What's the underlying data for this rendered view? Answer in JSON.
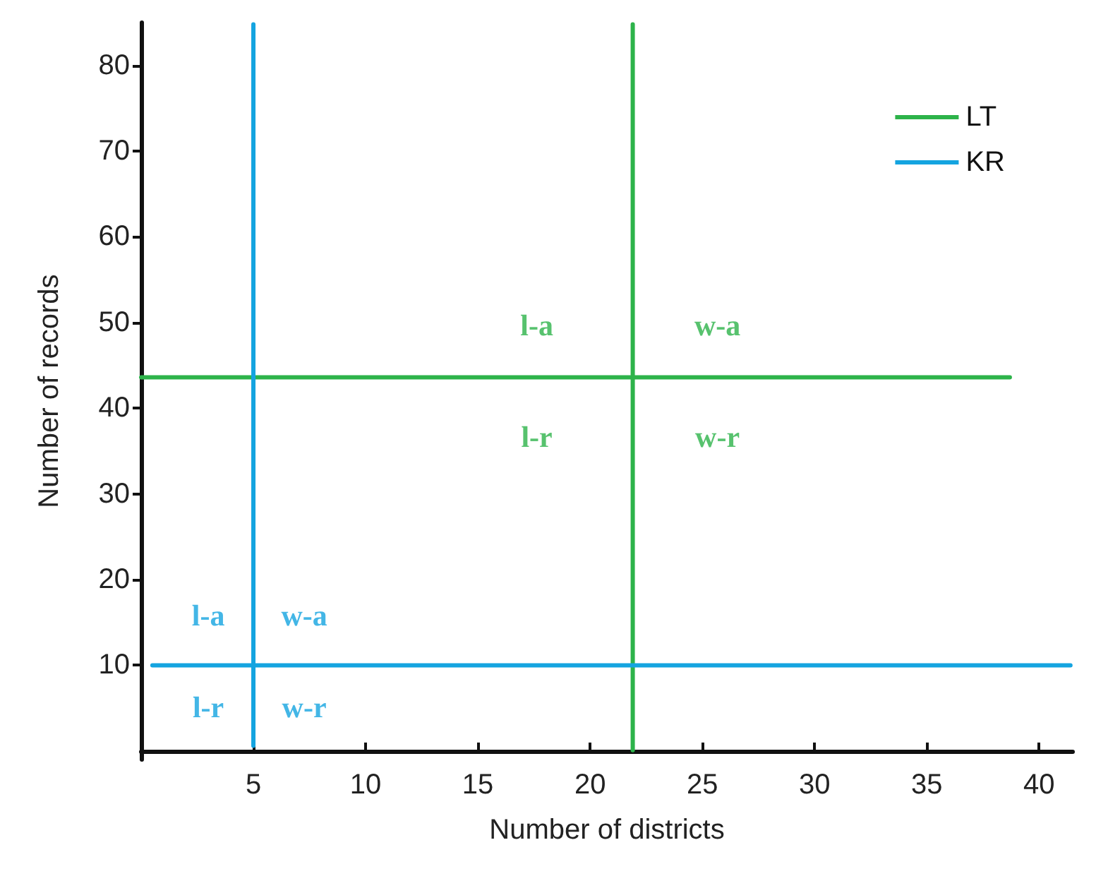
{
  "chart_data": {
    "type": "line",
    "xlabel": "Number of districts",
    "ylabel": "Number of records",
    "xlim": [
      0,
      41.5
    ],
    "ylim": [
      -1,
      85
    ],
    "xticks": [
      5,
      10,
      15,
      20,
      25,
      30,
      35,
      40
    ],
    "yticks": [
      10,
      20,
      30,
      40,
      50,
      60,
      70,
      80
    ],
    "grid": false,
    "legend": "top right",
    "marker": "none",
    "line_style": "solid",
    "series": [
      {
        "name": "LT",
        "color": "#2db34a",
        "x": [
          0,
          21.9,
          21.9,
          21.9,
          21.9,
          38.7
        ],
        "values": [
          43.6,
          43.6,
          84.8,
          0.1,
          43.6,
          43.6
        ]
      },
      {
        "name": "KR",
        "color": "#14a4e0",
        "x": [
          0.5,
          5,
          5,
          5,
          5,
          41.4
        ],
        "values": [
          10,
          10,
          84.8,
          0.6,
          10,
          10
        ]
      }
    ],
    "annotations": [
      "l-a",
      "w-a",
      "l-r",
      "w-r",
      "l-a",
      "w-a",
      "l-r",
      "w-r"
    ]
  }
}
